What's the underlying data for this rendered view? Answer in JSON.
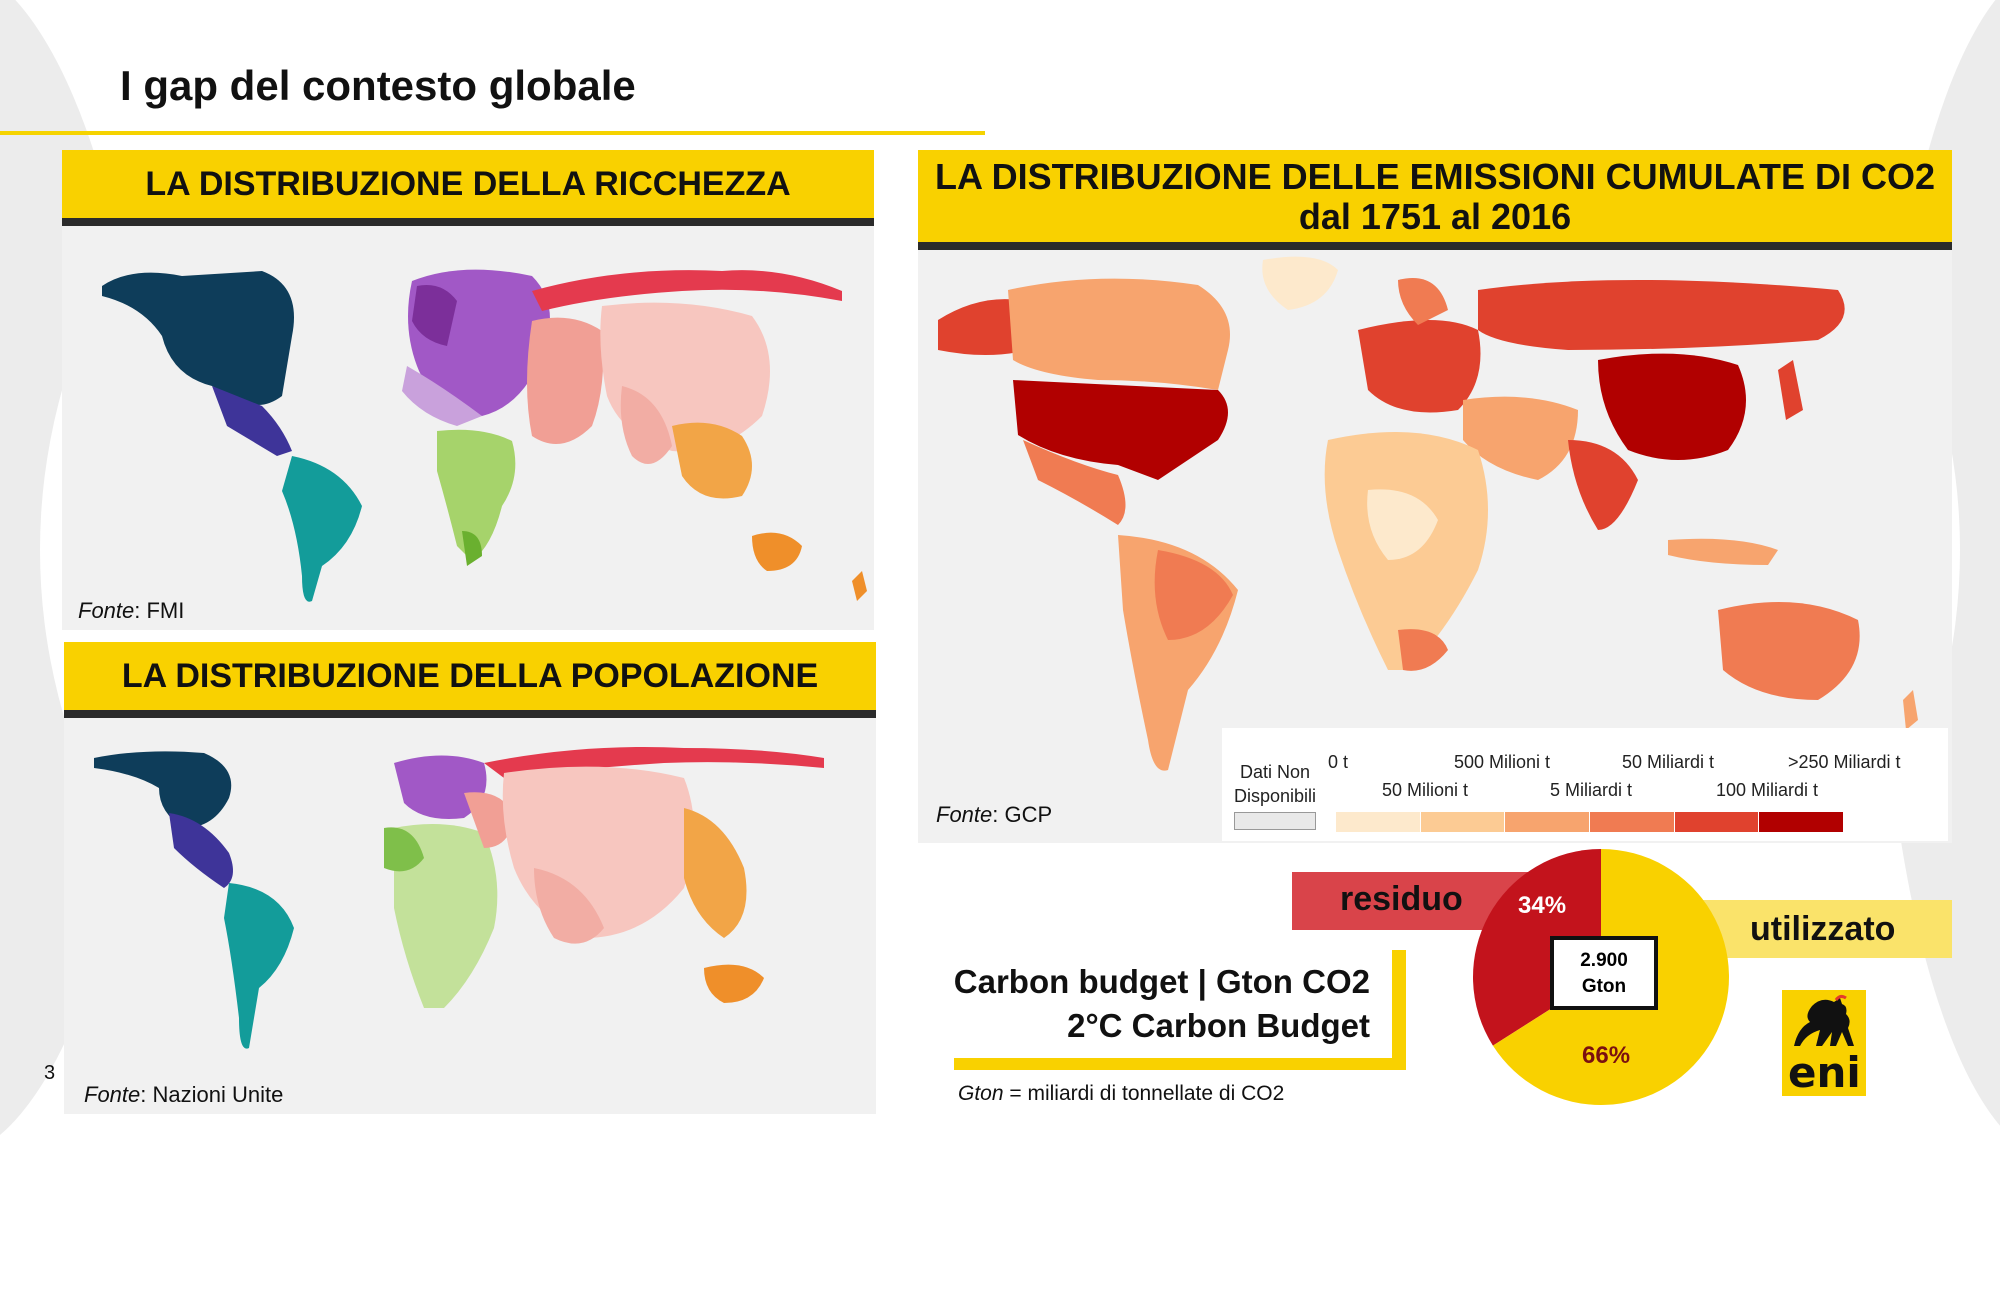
{
  "slide": {
    "title": "I gap del contesto globale",
    "page_number": "3"
  },
  "wealth": {
    "heading": "LA DISTRIBUZIONE DELLA RICCHEZZA",
    "source_label": "Fonte",
    "source_value": ": FMI"
  },
  "population": {
    "heading": "LA DISTRIBUZIONE DELLA POPOLAZIONE",
    "source_label": "Fonte",
    "source_value": ": Nazioni Unite"
  },
  "emissions": {
    "heading_line1": "LA DISTRIBUZIONE DELLE EMISSIONI CUMULATE DI CO2",
    "heading_line2": "dal 1751 al 2016",
    "source_label": "Fonte",
    "source_value": ": GCP",
    "legend": {
      "no_data_line1": "Dati Non",
      "no_data_line2": "Disponibili",
      "top_labels": [
        "0 t",
        "500 Milioni t",
        "50 Miliardi t",
        ">250 Miliardi t"
      ],
      "bottom_labels": [
        "50 Milioni t",
        "5 Miliardi t",
        "100 Miliardi t"
      ],
      "colors": [
        "#fde9cc",
        "#fccb94",
        "#f7a46e",
        "#f07b52",
        "#e0422e",
        "#b10000"
      ]
    }
  },
  "carbon_budget": {
    "title_line1": "Carbon budget | Gton CO2",
    "title_line2": "2°C Carbon Budget",
    "residual_label": "residuo",
    "used_label": "utilizzato",
    "total_line1": "2.900",
    "total_line2": "Gton",
    "residual_pct": "34%",
    "used_pct": "66%",
    "footnote_term": "Gton",
    "footnote_text": " = miliardi di tonnellate di CO2",
    "colors": {
      "residual": "#c3131c",
      "used": "#f9d100",
      "residual_bar": "#d9444a",
      "used_bar": "#fae36a"
    }
  },
  "chart_data": {
    "type": "pie",
    "title": "2°C Carbon Budget",
    "categories": [
      "residuo",
      "utilizzato"
    ],
    "values": [
      34,
      66
    ],
    "unit": "%"
  },
  "logo": {
    "text": "eni",
    "color": "#f9d100"
  }
}
